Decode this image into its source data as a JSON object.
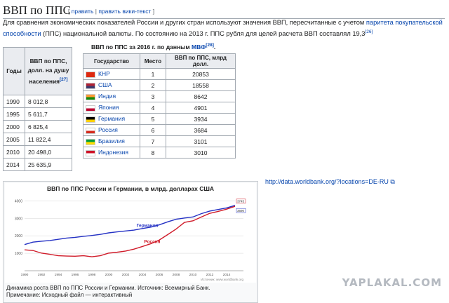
{
  "heading": {
    "title": "ВВП по ППС",
    "edit_prefix": "[ ",
    "edit": "править",
    "sep": " | ",
    "edit_code": "править вики-текст",
    "edit_suffix": " ]"
  },
  "paragraph": {
    "text1": "Для сравнения экономических показателей России и других стран используют значения ВВП, пересчитанные с учетом ",
    "link": "паритета покупательской способности",
    "text2": " (ППС) национальной валюты. По состоянию на 2013 г. ППС рубля для целей расчета ВВП составлял 19,3",
    "ref": "[26]"
  },
  "gdp_table": {
    "col1": "Годы",
    "col2_l1": "ВВП по ППС,",
    "col2_l2": "долл. на душу",
    "col2_l3": "населения",
    "col2_ref": "[27]",
    "rows": [
      {
        "year": "1990",
        "value": "8 012,8"
      },
      {
        "year": "1995",
        "value": "5 611,7"
      },
      {
        "year": "2000",
        "value": "6 825,4"
      },
      {
        "year": "2005",
        "value": "11 822,4"
      },
      {
        "year": "2010",
        "value": "20 498,0"
      },
      {
        "year": "2014",
        "value": "25 635,9"
      }
    ]
  },
  "country_table": {
    "title": "ВВП по ППС за 2016 г. по данным ",
    "title_link": "МВФ",
    "title_ref": "[28]",
    "title_end": ".",
    "headers": [
      "Государство",
      "Место",
      "ВВП по ППС, млрд долл."
    ],
    "rows": [
      {
        "country": "КНР",
        "rank": "1",
        "value": "20853",
        "flag": "china-flag-icon",
        "c1": "#de2910",
        "c2": "#de2910"
      },
      {
        "country": "США",
        "rank": "2",
        "value": "18558",
        "flag": "usa-flag-icon",
        "c1": "#b22234",
        "c2": "#3c3b6e"
      },
      {
        "country": "Индия",
        "rank": "3",
        "value": "8642",
        "flag": "india-flag-icon",
        "c1": "#ff9933",
        "c2": "#138808"
      },
      {
        "country": "Япония",
        "rank": "4",
        "value": "4901",
        "flag": "japan-flag-icon",
        "c1": "#ffffff",
        "c2": "#bc002d"
      },
      {
        "country": "Германия",
        "rank": "5",
        "value": "3934",
        "flag": "germany-flag-icon",
        "c1": "#000000",
        "c2": "#ffce00"
      },
      {
        "country": "Россия",
        "rank": "6",
        "value": "3684",
        "flag": "russia-flag-icon",
        "c1": "#ffffff",
        "c2": "#d52b1e"
      },
      {
        "country": "Бразилия",
        "rank": "7",
        "value": "3101",
        "flag": "brazil-flag-icon",
        "c1": "#009c3b",
        "c2": "#ffdf00"
      },
      {
        "country": "Индонезия",
        "rank": "8",
        "value": "3010",
        "flag": "indonesia-flag-icon",
        "c1": "#ce1126",
        "c2": "#ffffff"
      }
    ]
  },
  "external_link": "http://data.worldbank.org/?locations=DE-RU",
  "caption": {
    "line1": "Динамика роста ВВП по ППС России и Германии. Источник: Всемирный Банк.",
    "line2": "Примечание: Исходный файл — интерактивный"
  },
  "watermark": "YAPLAKAL.COM",
  "chart_data": {
    "type": "line",
    "title": "ВВП по ППС России и Германии, в млрд. долларах США",
    "source": "Источник: www.worldbank.org",
    "x": [
      1990,
      1991,
      1992,
      1993,
      1994,
      1995,
      1996,
      1997,
      1998,
      1999,
      2000,
      2001,
      2002,
      2003,
      2004,
      2005,
      2006,
      2007,
      2008,
      2009,
      2010,
      2011,
      2012,
      2013,
      2014,
      2015
    ],
    "xticks": [
      1990,
      1992,
      1994,
      1996,
      1998,
      2000,
      2002,
      2004,
      2006,
      2008,
      2010,
      2012,
      2014
    ],
    "yticks": [
      1000,
      2000,
      3000,
      4000
    ],
    "ylim": [
      0,
      4300
    ],
    "xlim": [
      1990,
      2016
    ],
    "series": [
      {
        "name": "Германия",
        "color": "#2431c4",
        "values": [
          1500,
          1640,
          1690,
          1730,
          1800,
          1870,
          1910,
          1970,
          2020,
          2080,
          2170,
          2230,
          2280,
          2330,
          2420,
          2500,
          2630,
          2800,
          2950,
          3020,
          3080,
          3270,
          3420,
          3510,
          3600,
          3745
        ]
      },
      {
        "name": "Россия",
        "color": "#d01c2a",
        "values": [
          1200,
          1160,
          1010,
          940,
          860,
          840,
          830,
          860,
          800,
          860,
          1010,
          1060,
          1130,
          1240,
          1390,
          1550,
          1760,
          2070,
          2390,
          2770,
          2860,
          3080,
          3290,
          3400,
          3530,
          3690
        ]
      }
    ],
    "end_labels": [
      "3745",
      "3690"
    ]
  }
}
